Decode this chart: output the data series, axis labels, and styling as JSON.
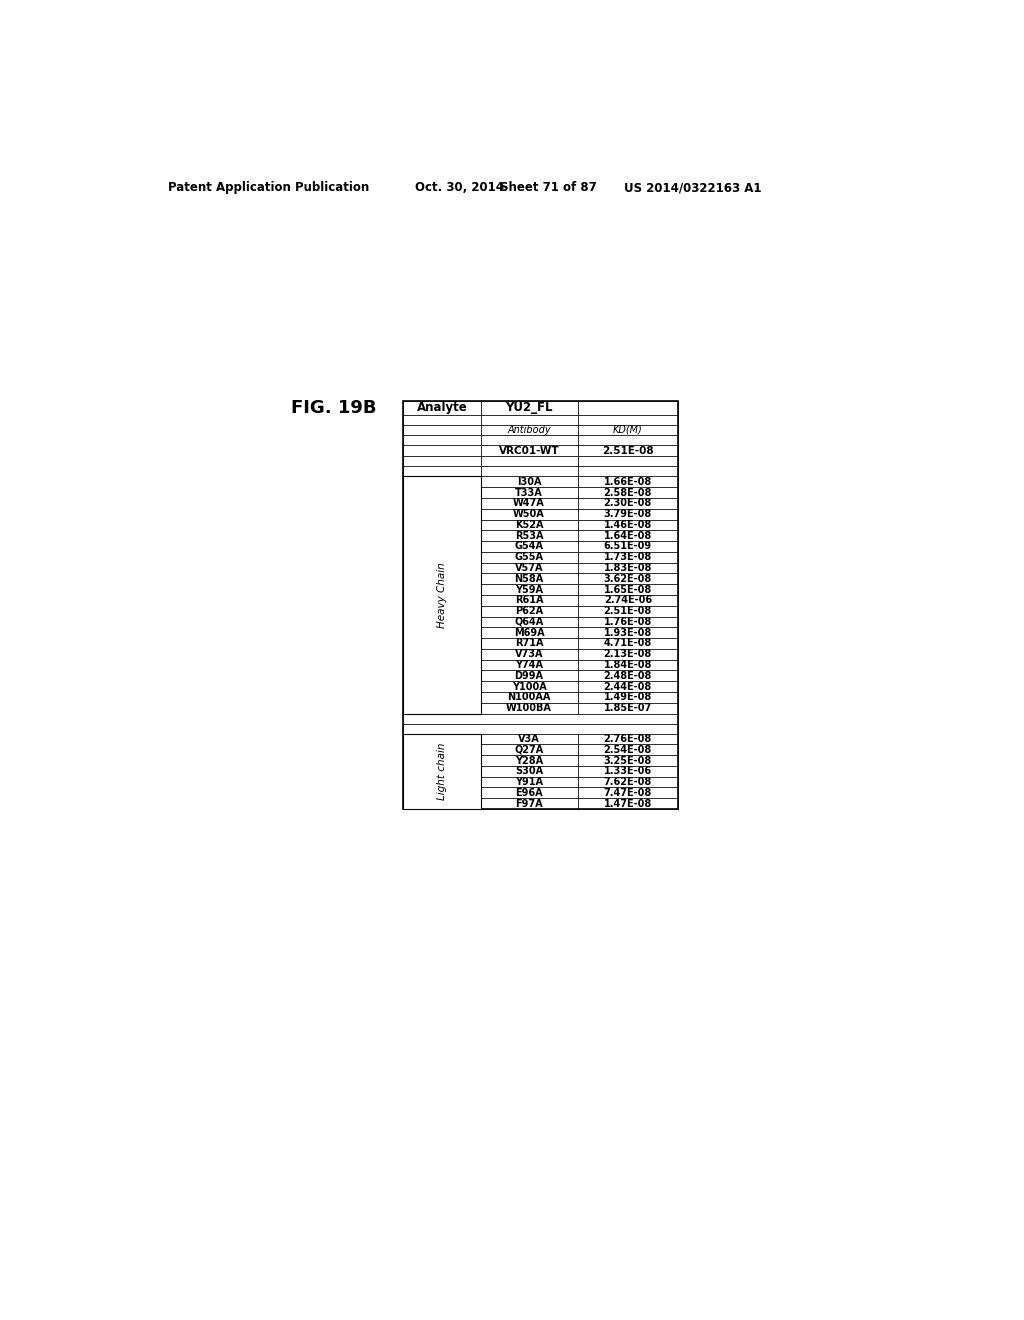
{
  "fig_label": "FIG. 19B",
  "analyte_header": "Analyte",
  "col2_header": "YU2_FL",
  "sub_col1": "Antibody",
  "sub_col2": "KD(M)",
  "vrc01_wt": {
    "antibody": "VRC01-WT",
    "kd": "2.51E-08"
  },
  "heavy_chain_label": "Heavy Chain",
  "heavy_chain_rows_1": [
    {
      "antibody": "I30A",
      "kd": "1.66E-08"
    },
    {
      "antibody": "T33A",
      "kd": "2.58E-08"
    },
    {
      "antibody": "W47A",
      "kd": "2.30E-08"
    },
    {
      "antibody": "W50A",
      "kd": "3.79E-08"
    },
    {
      "antibody": "K52A",
      "kd": "1.46E-08"
    },
    {
      "antibody": "R53A",
      "kd": "1.64E-08"
    },
    {
      "antibody": "G54A",
      "kd": "6.51E-09"
    },
    {
      "antibody": "G55A",
      "kd": "1.73E-08"
    },
    {
      "antibody": "V57A",
      "kd": "1.83E-08"
    },
    {
      "antibody": "N58A",
      "kd": "3.62E-08"
    },
    {
      "antibody": "Y59A",
      "kd": "1.65E-08"
    },
    {
      "antibody": "R61A",
      "kd": "2.74E-06"
    },
    {
      "antibody": "P62A",
      "kd": "2.51E-08"
    },
    {
      "antibody": "Q64A",
      "kd": "1.76E-08"
    }
  ],
  "heavy_chain_rows_2": [
    {
      "antibody": "M69A",
      "kd": "1.93E-08"
    },
    {
      "antibody": "R71A",
      "kd": "4.71E-08"
    },
    {
      "antibody": "V73A",
      "kd": "2.13E-08"
    },
    {
      "antibody": "Y74A",
      "kd": "1.84E-08"
    },
    {
      "antibody": "D99A",
      "kd": "2.48E-08"
    },
    {
      "antibody": "Y100A",
      "kd": "2.44E-08"
    },
    {
      "antibody": "N100AA",
      "kd": "1.49E-08"
    },
    {
      "antibody": "W100BA",
      "kd": "1.85E-07"
    }
  ],
  "light_chain_label": "Light chain",
  "light_chain_rows": [
    {
      "antibody": "V3A",
      "kd": "2.76E-08"
    },
    {
      "antibody": "Q27A",
      "kd": "2.54E-08"
    },
    {
      "antibody": "Y28A",
      "kd": "3.25E-08"
    },
    {
      "antibody": "S30A",
      "kd": "1.33E-06"
    },
    {
      "antibody": "Y91A",
      "kd": "7.62E-08"
    },
    {
      "antibody": "E96A",
      "kd": "7.47E-08"
    },
    {
      "antibody": "F97A",
      "kd": "1.47E-08"
    }
  ],
  "background_color": "#ffffff",
  "header_left": "Patent Application Publication",
  "header_mid1": "Oct. 30, 2014",
  "header_mid2": "Sheet 71 of 87",
  "header_right": "US 2014/0322163 A1"
}
